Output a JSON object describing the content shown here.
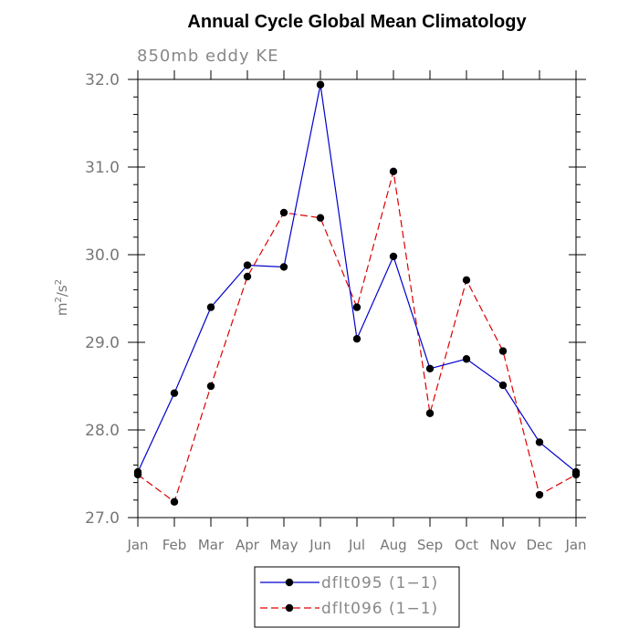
{
  "chart_data": {
    "type": "line",
    "title": "Annual Cycle Global Mean Climatology",
    "subtitle": "850mb eddy KE",
    "ylabel_base": "m",
    "ylabel_exp1": "2",
    "ylabel_mid": "/s",
    "ylabel_exp2": "2",
    "categories": [
      "Jan",
      "Feb",
      "Mar",
      "Apr",
      "May",
      "Jun",
      "Jul",
      "Aug",
      "Sep",
      "Oct",
      "Nov",
      "Dec",
      "Jan"
    ],
    "ylim": [
      27.0,
      32.0
    ],
    "yticks": [
      "27.0",
      "28.0",
      "29.0",
      "30.0",
      "31.0",
      "32.0"
    ],
    "series": [
      {
        "name": "dflt095 (1−1)",
        "color": "#0000cc",
        "dash": "solid",
        "values": [
          27.52,
          28.42,
          29.4,
          29.88,
          29.86,
          31.94,
          29.04,
          29.98,
          28.7,
          28.81,
          28.51,
          27.86,
          27.52
        ]
      },
      {
        "name": "dflt096 (1−1)",
        "color": "#dd0000",
        "dash": "dashed",
        "values": [
          27.49,
          27.18,
          28.5,
          29.75,
          30.48,
          30.42,
          29.4,
          30.95,
          28.19,
          29.71,
          28.9,
          27.26,
          27.49
        ]
      }
    ]
  }
}
